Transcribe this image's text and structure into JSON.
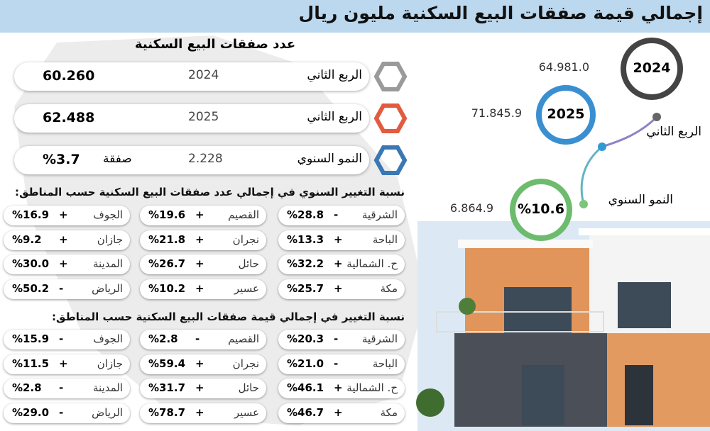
{
  "header": {
    "title": "إجمالي قيمة صفقات البيع السكنية مليون ريال"
  },
  "deals": {
    "title": "عدد صفقات البيع السكنية",
    "rows": [
      {
        "label": "الربع الثاني",
        "year": "2024",
        "value": "60.260"
      },
      {
        "label": "الربع الثاني",
        "year": "2025",
        "value": "62.488"
      },
      {
        "label": "النمو السنوي",
        "year": "2.228",
        "unit": "صفقة",
        "value": "%3.7"
      }
    ]
  },
  "value_panel": {
    "circles": [
      {
        "label": "2024",
        "value": "64.981.0"
      },
      {
        "label": "2025",
        "value": "71.845.9"
      },
      {
        "label": "%10.6",
        "value": "6.864.9"
      }
    ],
    "quarter_label": "الربع الثاني",
    "growth_label": "النمو السنوي"
  },
  "count_change": {
    "title": "نسبة التغيير السنوي في إجمالي عدد صفقات البيع السكنية حسب المناطق:",
    "cells": [
      [
        {
          "region": "الشرقية",
          "sign": "-",
          "value": "%28.8"
        },
        {
          "region": "القصيم",
          "sign": "+",
          "value": "%19.6"
        },
        {
          "region": "الجوف",
          "sign": "+",
          "value": "%16.9"
        }
      ],
      [
        {
          "region": "الباحة",
          "sign": "+",
          "value": "%13.3"
        },
        {
          "region": "نجران",
          "sign": "+",
          "value": "%21.8"
        },
        {
          "region": "جازان",
          "sign": "+",
          "value": "%9.2"
        }
      ],
      [
        {
          "region": "ح. الشمالية",
          "sign": "+",
          "value": "%32.2"
        },
        {
          "region": "حائل",
          "sign": "+",
          "value": "%26.7"
        },
        {
          "region": "المدينة",
          "sign": "+",
          "value": "%30.0"
        }
      ],
      [
        {
          "region": "مكة",
          "sign": "+",
          "value": "%25.7"
        },
        {
          "region": "عسير",
          "sign": "+",
          "value": "%10.2"
        },
        {
          "region": "الرياض",
          "sign": "-",
          "value": "%50.2"
        }
      ]
    ]
  },
  "value_change": {
    "title": "نسبة التغيير في إجمالي قيمة صفقات البيع السكنية حسب المناطق:",
    "cells": [
      [
        {
          "region": "الشرقية",
          "sign": "-",
          "value": "%20.3"
        },
        {
          "region": "القصيم",
          "sign": "-",
          "value": "%2.8"
        },
        {
          "region": "الجوف",
          "sign": "-",
          "value": "%15.9"
        }
      ],
      [
        {
          "region": "الباحة",
          "sign": "-",
          "value": "%21.0"
        },
        {
          "region": "نجران",
          "sign": "+",
          "value": "%59.4"
        },
        {
          "region": "جازان",
          "sign": "+",
          "value": "%11.5"
        }
      ],
      [
        {
          "region": "ح. الشمالية",
          "sign": "+",
          "value": "%46.1"
        },
        {
          "region": "حائل",
          "sign": "+",
          "value": "%31.7"
        },
        {
          "region": "المدينة",
          "sign": "-",
          "value": "%2.8"
        }
      ],
      [
        {
          "region": "مكة",
          "sign": "+",
          "value": "%46.7"
        },
        {
          "region": "عسير",
          "sign": "+",
          "value": "%78.7"
        },
        {
          "region": "الرياض",
          "sign": "-",
          "value": "%29.0"
        }
      ]
    ]
  }
}
